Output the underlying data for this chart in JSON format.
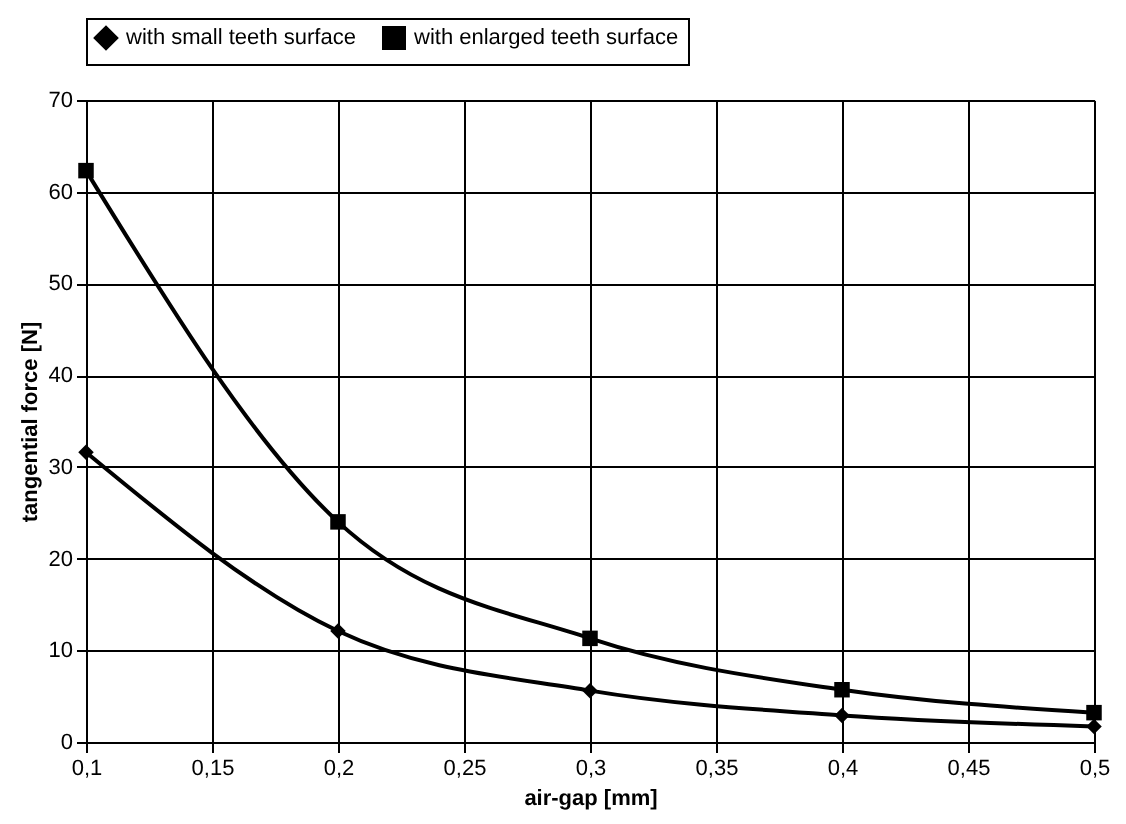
{
  "chart_data": {
    "type": "line",
    "xlabel": "air-gap [mm]",
    "ylabel": "tangential force [N]",
    "x": [
      0.1,
      0.2,
      0.3,
      0.4,
      0.5
    ],
    "series": [
      {
        "name": "with small teeth surface",
        "color": "#000000",
        "marker": "diamond",
        "values": [
          31.6,
          12.1,
          5.6,
          2.9,
          1.7
        ]
      },
      {
        "name": "with enlarged teeth surface",
        "color": "#000000",
        "marker": "square",
        "values": [
          62.3,
          24.0,
          11.3,
          5.7,
          3.2
        ]
      }
    ],
    "xlim": [
      0.1,
      0.5
    ],
    "xticks": [
      {
        "value": 0.1,
        "label": "0,1"
      },
      {
        "value": 0.15,
        "label": "0,15"
      },
      {
        "value": 0.2,
        "label": "0,2"
      },
      {
        "value": 0.25,
        "label": "0,25"
      },
      {
        "value": 0.3,
        "label": "0,3"
      },
      {
        "value": 0.35,
        "label": "0,35"
      },
      {
        "value": 0.4,
        "label": "0,4"
      },
      {
        "value": 0.45,
        "label": "0,45"
      },
      {
        "value": 0.5,
        "label": "0,5"
      }
    ],
    "ylim": [
      0,
      70
    ],
    "yticks": [
      0,
      10,
      20,
      30,
      40,
      50,
      60,
      70
    ],
    "grid": true,
    "legend": "top",
    "line_style": "solid"
  }
}
